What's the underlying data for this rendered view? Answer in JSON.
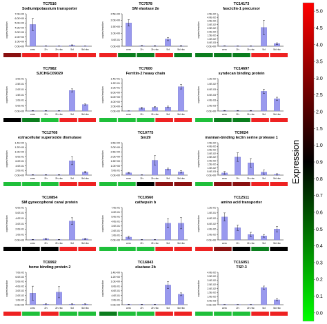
{
  "figure": {
    "colorbar": {
      "label": "Expression",
      "ticks": [
        "0.0",
        "0.1",
        "0.2",
        "0.3",
        "0.4",
        "0.5",
        "0.6",
        "0.7",
        "0.8",
        "0.9",
        "1.0",
        "1.5",
        "2.0",
        "2.5",
        "3.0",
        "3.5",
        "4.0",
        "4.5",
        "5.0"
      ],
      "colors": {
        "low": "#00ff00",
        "mid": "#000000",
        "high": "#ff0000"
      }
    },
    "bar_color": "#9999ee",
    "heat_colors": {
      "green": "#1fbf3a",
      "dark_green": "#0b7d1e",
      "black": "#000000",
      "dark_red": "#8a1010",
      "red": "#ee2222"
    }
  },
  "chart_data": [
    {
      "type": "bar",
      "id": "TC7516",
      "title": "Sodium/potassium transporter",
      "ylabel": "copies/reaction",
      "yticks": [
        "0.0E+00",
        "1.0E+00",
        "2.0E+00",
        "3.0E+00",
        "4.0E+00",
        "5.0E+00",
        "6.0E+00",
        "7.0E+00"
      ],
      "ylim": [
        0,
        7
      ],
      "categories": [
        "cerc",
        "2h",
        "2h rbc",
        "5d",
        "5d rbc"
      ],
      "values": [
        4.7,
        0.04,
        0.03,
        0.2,
        0.03
      ],
      "errors": [
        1.3,
        0.03,
        0.02,
        0.1,
        0.02
      ],
      "heatmap": [
        "dark_red",
        "red",
        "red",
        "red",
        "red"
      ]
    },
    {
      "type": "bar",
      "id": "TC7578",
      "title": "SM elastase 2e",
      "ylabel": "copies/reaction",
      "yticks": [
        "0.0E+00",
        "5.0E-01",
        "1.0E+00",
        "1.5E+00",
        "2.0E+00",
        "2.5E+00"
      ],
      "ylim": [
        0,
        2.5
      ],
      "categories": [
        "cerc",
        "2h",
        "2h rbc",
        "5d",
        "5d rbc"
      ],
      "values": [
        1.8,
        0.03,
        0.02,
        0.55,
        0.02
      ],
      "errors": [
        0.25,
        0.02,
        0.02,
        0.12,
        0.02
      ],
      "heatmap": [
        "red",
        "dark_green",
        "dark_green",
        "red",
        "dark_green"
      ]
    },
    {
      "type": "bar",
      "id": "TC14173",
      "title": "fasciclin-1 precursor",
      "ylabel": "copies/reaction",
      "yticks": [
        "0.0E+00",
        "5.0E-03",
        "1.0E-02",
        "1.5E-02",
        "2.0E-02",
        "2.5E-02",
        "3.0E-02",
        "3.5E-02",
        "4.0E-02",
        "4.5E-02"
      ],
      "ylim": [
        0,
        0.045
      ],
      "categories": [
        "cerc",
        "2h",
        "2h rbc",
        "5d",
        "5d rbc"
      ],
      "values": [
        0.0003,
        0.0002,
        0.0002,
        0.026,
        0.0035
      ],
      "errors": [
        0.0002,
        0.0002,
        0.0002,
        0.01,
        0.0012
      ],
      "heatmap": [
        "dark_green",
        "dark_green",
        "dark_green",
        "red",
        "red"
      ]
    },
    {
      "type": "bar",
      "id": "TC7982",
      "title": "SJCHGC09029",
      "ylabel": "copies/reaction",
      "yticks": [
        "0.0E+00",
        "5.0E-02",
        "1.0E-01",
        "1.5E-01",
        "2.0E-01",
        "2.5E-01",
        "3.0E-01"
      ],
      "ylim": [
        0,
        0.3
      ],
      "categories": [
        "cerc",
        "2h",
        "2h rbc",
        "5d",
        "5d rbc"
      ],
      "values": [
        0.002,
        0.002,
        0.002,
        0.19,
        0.06
      ],
      "errors": [
        0.002,
        0.002,
        0.002,
        0.015,
        0.005
      ],
      "heatmap": [
        "black",
        "dark_green",
        "green",
        "red",
        "red"
      ]
    },
    {
      "type": "bar",
      "id": "TC7600",
      "title": "Ferritin-2 heavy chain",
      "ylabel": "copies/reaction",
      "yticks": [
        "0.0E+00",
        "2.0E+00",
        "4.0E+00",
        "6.0E+00",
        "8.0E+00",
        "1.0E+01",
        "1.2E+01",
        "1.4E+01"
      ],
      "ylim": [
        0,
        14
      ],
      "categories": [
        "cerc",
        "2h",
        "2h rbc",
        "5d",
        "5d rbc"
      ],
      "values": [
        0.05,
        1.3,
        1.6,
        1.7,
        10.5
      ],
      "errors": [
        0.05,
        0.4,
        0.3,
        0.4,
        1.0
      ],
      "heatmap": [
        "green",
        "green",
        "green",
        "red",
        "red"
      ]
    },
    {
      "type": "bar",
      "id": "TC14697",
      "title": "syndecan binding protein",
      "ylabel": "copies/reaction",
      "yticks": [
        "0.0E+00",
        "2.0E-03",
        "4.0E-03",
        "6.0E-03",
        "8.0E-03",
        "1.0E-02",
        "1.2E-02"
      ],
      "ylim": [
        0,
        0.012
      ],
      "categories": [
        "cerc",
        "2h",
        "2h rbc",
        "5d",
        "5d rbc"
      ],
      "values": [
        0.0001,
        0.0001,
        0.0001,
        0.0073,
        0.0045
      ],
      "errors": [
        0.0001,
        0.0001,
        0.0001,
        0.0008,
        0.0006
      ],
      "heatmap": [
        "green",
        "dark_green",
        "dark_green",
        "red",
        "red"
      ]
    },
    {
      "type": "bar",
      "id": "TC12708",
      "title": "extracellular superoxide dismutase",
      "ylabel": "copies/reaction",
      "yticks": [
        "0.0E+00",
        "2.0E-01",
        "4.0E-01",
        "6.0E-01",
        "8.0E-01",
        "1.0E+00",
        "1.2E+00",
        "1.4E+00"
      ],
      "ylim": [
        0,
        1.4
      ],
      "categories": [
        "cerc",
        "2h",
        "2h rbc",
        "5d",
        "5d rbc"
      ],
      "values": [
        0.01,
        0.01,
        0.01,
        0.62,
        0.13
      ],
      "errors": [
        0.01,
        0.01,
        0.01,
        0.17,
        0.03
      ],
      "heatmap": [
        "green",
        "green",
        "green",
        "red",
        "red"
      ]
    },
    {
      "type": "bar",
      "id": "TC10775",
      "title": "Sm29",
      "ylabel": "copies/reaction",
      "yticks": [
        "0.0E+00",
        "5.0E-01",
        "1.0E+00",
        "1.5E+00",
        "2.0E+00",
        "2.5E+00",
        "3.0E+00",
        "3.5E+00"
      ],
      "ylim": [
        0,
        3.5
      ],
      "categories": [
        "cerc",
        "2h",
        "2h rbc",
        "5d",
        "5d rbc"
      ],
      "values": [
        0.25,
        0.02,
        1.6,
        0.65,
        0.35
      ],
      "errors": [
        0.04,
        0.02,
        0.5,
        0.1,
        0.12
      ],
      "heatmap": [
        "green",
        "green",
        "black",
        "dark_red",
        "dark_red"
      ]
    },
    {
      "type": "bar",
      "id": "TC9024",
      "title": "mannan-binding lectin serine protease 1",
      "ylabel": "copies/reaction",
      "yticks": [
        "0.0E+00",
        "5.0E-03",
        "1.0E-02",
        "1.5E-02",
        "2.0E-02",
        "2.5E-02",
        "3.0E-02",
        "3.5E-02",
        "4.0E-02",
        "4.5E-02"
      ],
      "ylim": [
        0,
        0.045
      ],
      "categories": [
        "cerc",
        "2h",
        "2h rbc",
        "5d",
        "5d rbc"
      ],
      "values": [
        0.003,
        0.025,
        0.017,
        0.004,
        0.001
      ],
      "errors": [
        0.002,
        0.006,
        0.006,
        0.003,
        0.001
      ],
      "heatmap": [
        "green",
        "dark_red",
        "dark_red",
        "red",
        "red"
      ]
    },
    {
      "type": "bar",
      "id": "TC10854",
      "title": "SM gynecophoral canal protein",
      "ylabel": "copies/reaction",
      "yticks": [
        "0.0E+00",
        "1.0E-01",
        "2.0E-01",
        "3.0E-01",
        "4.0E-01",
        "5.0E-01",
        "6.0E-01"
      ],
      "ylim": [
        0,
        0.6
      ],
      "categories": [
        "cerc",
        "2h",
        "2h rbc",
        "5d",
        "5d rbc"
      ],
      "values": [
        0.005,
        0.02,
        0.005,
        0.35,
        0.02
      ],
      "errors": [
        0.004,
        0.01,
        0.004,
        0.06,
        0.01
      ],
      "heatmap": [
        "black",
        "black",
        "black",
        "red",
        "red"
      ]
    },
    {
      "type": "bar",
      "id": "TC10560",
      "title": "cathepsin b",
      "ylabel": "copies/reaction",
      "yticks": [
        "0.0E+00",
        "1.0E-01",
        "2.0E-01",
        "3.0E-01",
        "4.0E-01",
        "5.0E-01",
        "6.0E-01",
        "7.0E-01"
      ],
      "ylim": [
        0,
        0.7
      ],
      "categories": [
        "cerc",
        "2h",
        "2h rbc",
        "5d",
        "5d rbc"
      ],
      "values": [
        0.06,
        0.005,
        0.005,
        0.36,
        0.36
      ],
      "errors": [
        0.02,
        0.004,
        0.004,
        0.1,
        0.12
      ],
      "heatmap": [
        "green",
        "green",
        "green",
        "red",
        "red"
      ]
    },
    {
      "type": "bar",
      "id": "TC12511",
      "title": "amino acid transporter",
      "ylabel": "copies/reaction",
      "yticks": [
        "0.0E+00",
        "2.0E-02",
        "4.0E-02",
        "6.0E-02",
        "8.0E-02",
        "1.0E-01",
        "1.2E-01"
      ],
      "ylim": [
        0,
        0.12
      ],
      "categories": [
        "cerc",
        "2h",
        "2h rbc",
        "5d",
        "5d rbc"
      ],
      "values": [
        0.085,
        0.045,
        0.02,
        0.015,
        0.04
      ],
      "errors": [
        0.015,
        0.01,
        0.008,
        0.005,
        0.01
      ],
      "heatmap": [
        "red",
        "dark_red",
        "black",
        "dark_green",
        "black"
      ]
    },
    {
      "type": "bar",
      "id": "TC6992",
      "title": "home binding protein 2",
      "ylabel": "copies/reaction",
      "yticks": [
        "0.0E+00",
        "1.0E-02",
        "2.0E-02",
        "3.0E-02",
        "4.0E-02",
        "5.0E-02",
        "6.0E-02",
        "7.0E-02"
      ],
      "ylim": [
        0,
        0.07
      ],
      "categories": [
        "cerc",
        "2h",
        "2h rbc",
        "5d",
        "5d rbc"
      ],
      "values": [
        0.025,
        0.001,
        0.027,
        0.001,
        0.001
      ],
      "errors": [
        0.015,
        0.001,
        0.012,
        0.001,
        0.001
      ],
      "heatmap": [
        "red",
        "green",
        "red",
        "green",
        "green"
      ]
    },
    {
      "type": "bar",
      "id": "TC16843",
      "title": "elastase 2b",
      "ylabel": "copies/reaction",
      "yticks": [
        "0.0E+00",
        "2.0E-01",
        "4.0E-01",
        "6.0E-01",
        "8.0E-01",
        "1.0E+00",
        "1.2E+00",
        "1.4E+00"
      ],
      "ylim": [
        0,
        1.4
      ],
      "categories": [
        "cerc",
        "2h",
        "2h rbc",
        "5d",
        "5d rbc"
      ],
      "values": [
        0.01,
        0.01,
        0.01,
        0.85,
        0.45
      ],
      "errors": [
        0.01,
        0.01,
        0.01,
        0.15,
        0.06
      ],
      "heatmap": [
        "dark_green",
        "green",
        "green",
        "red",
        "red"
      ]
    },
    {
      "type": "bar",
      "id": "TC16051",
      "title": "TSP-3",
      "ylabel": "copies/reaction",
      "yticks": [
        "0.0E+00",
        "5.0E-03",
        "1.0E-02",
        "1.5E-02",
        "2.0E-02",
        "2.5E-02",
        "3.0E-02",
        "3.5E-02",
        "4.0E-02"
      ],
      "ylim": [
        0,
        0.04
      ],
      "categories": [
        "cerc",
        "2h",
        "2h rbc",
        "5d",
        "5d rbc"
      ],
      "values": [
        0.0002,
        0.0002,
        0.0002,
        0.021,
        0.006
      ],
      "errors": [
        0.0002,
        0.0002,
        0.0002,
        0.002,
        0.0015
      ],
      "heatmap": [
        "green",
        "green",
        "green",
        "red",
        "red"
      ]
    }
  ]
}
